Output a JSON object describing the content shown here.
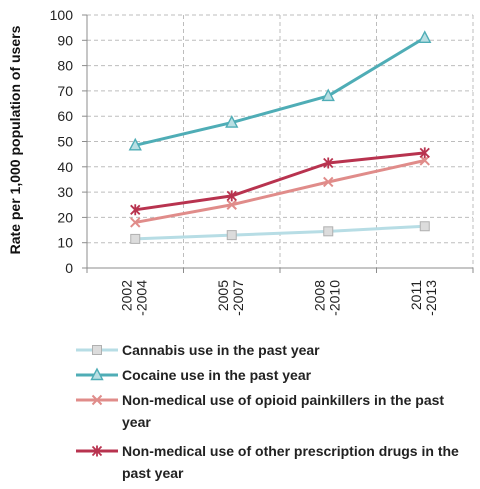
{
  "chart_data": {
    "type": "line",
    "categories": [
      "2002\n-2004",
      "2005\n-2007",
      "2008\n-2010",
      "2011\n-2013"
    ],
    "ylabel": "Rate per 1,000 population of users",
    "xlabel": "",
    "title": "",
    "ylim": [
      0,
      100
    ],
    "yticks": [
      0,
      10,
      20,
      30,
      40,
      50,
      60,
      70,
      80,
      90,
      100
    ],
    "grid": "dashed",
    "legend_position": "bottom",
    "series": [
      {
        "name": "Cannabis use in the past year",
        "values": [
          11.5,
          13,
          14.5,
          16.5
        ],
        "color": "#b7dde5",
        "marker": "square"
      },
      {
        "name": "Cocaine use in the past year",
        "values": [
          48.5,
          57.5,
          68,
          91
        ],
        "color": "#4fadb6",
        "marker": "triangle"
      },
      {
        "name": "Non-medical use of opioid painkillers in the past year",
        "values": [
          18,
          25,
          34,
          42.5
        ],
        "color": "#e08c8a",
        "marker": "x"
      },
      {
        "name": "Non-medical use of other prescription drugs in the past year",
        "values": [
          23,
          28.5,
          41.5,
          45.5
        ],
        "color": "#b8334f",
        "marker": "star"
      }
    ]
  }
}
